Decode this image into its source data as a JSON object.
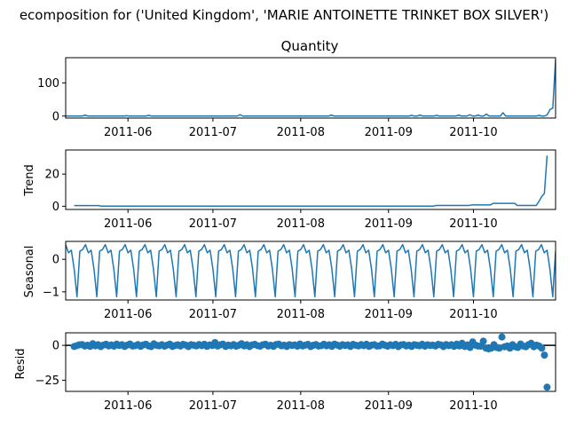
{
  "figure": {
    "suptitle": "ecomposition for ('United Kingdom', 'MARIE ANTOINETTE TRINKET BOX SILVER')"
  },
  "colors": {
    "series": "#1f77b4",
    "axis": "#000000",
    "zero_line": "#000000"
  },
  "chart_data": [
    {
      "type": "line",
      "panel": "observed",
      "title": "Quantity",
      "ylabel": "",
      "x_start": "2011-05-10",
      "x_end": "2011-10-30",
      "xlim": [
        "2011-05-10",
        "2011-10-30"
      ],
      "ylim": [
        -6,
        176
      ],
      "xticks": [
        "2011-06",
        "2011-07",
        "2011-08",
        "2011-09",
        "2011-10"
      ],
      "yticks": [
        0,
        100
      ],
      "series": [
        {
          "values": [
            0,
            0,
            0,
            0,
            0,
            0,
            0,
            3,
            0,
            0,
            0,
            0,
            0,
            0,
            0,
            0,
            0,
            0,
            0,
            0,
            0,
            0,
            1,
            0,
            0,
            0,
            0,
            0,
            0,
            0,
            2,
            0,
            0,
            0,
            0,
            0,
            0,
            0,
            0,
            0,
            0,
            0,
            0,
            0,
            0,
            0,
            0,
            0,
            0,
            0,
            0,
            0,
            0,
            0,
            0,
            0,
            0,
            0,
            0,
            0,
            0,
            0,
            0,
            4,
            0,
            0,
            0,
            0,
            0,
            0,
            0,
            0,
            0,
            0,
            0,
            0,
            0,
            0,
            0,
            0,
            0,
            0,
            0,
            0,
            0,
            0,
            0,
            0,
            0,
            0,
            0,
            0,
            0,
            0,
            0,
            0,
            3,
            0,
            0,
            0,
            0,
            0,
            0,
            0,
            0,
            0,
            0,
            0,
            0,
            0,
            0,
            0,
            0,
            0,
            0,
            0,
            0,
            0,
            0,
            0,
            0,
            0,
            0,
            0,
            0,
            2,
            0,
            0,
            3,
            0,
            0,
            0,
            0,
            0,
            2,
            0,
            0,
            0,
            0,
            0,
            0,
            0,
            3,
            0,
            0,
            0,
            4,
            0,
            0,
            3,
            0,
            0,
            6,
            0,
            0,
            0,
            0,
            0,
            10,
            0,
            0,
            0,
            0,
            0,
            0,
            0,
            0,
            0,
            0,
            0,
            0,
            2,
            0,
            0,
            4,
            20,
            24,
            170
          ]
        }
      ]
    },
    {
      "type": "line",
      "panel": "trend",
      "title": "",
      "ylabel": "Trend",
      "x_start": "2011-05-13",
      "x_end": "2011-10-27",
      "xlim": [
        "2011-05-10",
        "2011-10-30"
      ],
      "ylim": [
        -2,
        35
      ],
      "xticks": [
        "2011-06",
        "2011-07",
        "2011-08",
        "2011-09",
        "2011-10"
      ],
      "yticks": [
        0,
        20
      ],
      "series": [
        {
          "values": [
            0.4,
            0.4,
            0.4,
            0.4,
            0.4,
            0.4,
            0.4,
            0.4,
            0.4,
            0.4,
            0.1,
            0.1,
            0.1,
            0.1,
            0.1,
            0.1,
            0.1,
            0.1,
            0.1,
            0.1,
            0.1,
            0.1,
            0.1,
            0.1,
            0.1,
            0.1,
            0.1,
            0.1,
            0.1,
            0.1,
            0.1,
            0.1,
            0.1,
            0.1,
            0.1,
            0.1,
            0.1,
            0.1,
            0.1,
            0.1,
            0.1,
            0.1,
            0.1,
            0.1,
            0.1,
            0.1,
            0.1,
            0.1,
            0.1,
            0.1,
            0.1,
            0.1,
            0.1,
            0.1,
            0.1,
            0.1,
            0.1,
            0.1,
            0.1,
            0.1,
            0.1,
            0.1,
            0.1,
            0.1,
            0.1,
            0.1,
            0.1,
            0.1,
            0.1,
            0.1,
            0.1,
            0.1,
            0.1,
            0.1,
            0.1,
            0.1,
            0.1,
            0.1,
            0.1,
            0.1,
            0.1,
            0.1,
            0.1,
            0.1,
            0.1,
            0.1,
            0.1,
            0.1,
            0.1,
            0.1,
            0.1,
            0.1,
            0.1,
            0.1,
            0.1,
            0.1,
            0.1,
            0.1,
            0.1,
            0.1,
            0.1,
            0.1,
            0.1,
            0.1,
            0.1,
            0.1,
            0.1,
            0.1,
            0.1,
            0.1,
            0.1,
            0.1,
            0.1,
            0.1,
            0.1,
            0.1,
            0.1,
            0.1,
            0.1,
            0.1,
            0.1,
            0.1,
            0.1,
            0.1,
            0.1,
            0.1,
            0.1,
            0.1,
            0.1,
            0.1,
            0.1,
            0.1,
            0.1,
            0.1,
            0.5,
            0.5,
            0.5,
            0.5,
            0.5,
            0.5,
            0.5,
            0.5,
            0.5,
            0.5,
            0.5,
            0.5,
            0.5,
            0.8,
            0.8,
            0.8,
            0.8,
            0.8,
            0.8,
            0.8,
            0.8,
            1.8,
            1.8,
            1.8,
            1.8,
            1.8,
            1.8,
            1.8,
            1.8,
            1.8,
            0.5,
            0.5,
            0.5,
            0.5,
            0.5,
            0.5,
            0.5,
            0.5,
            3.0,
            6.0,
            8.0,
            31.5
          ]
        }
      ]
    },
    {
      "type": "line",
      "panel": "seasonal",
      "title": "",
      "ylabel": "Seasonal",
      "x_start": "2011-05-10",
      "x_end": "2011-10-30",
      "xlim": [
        "2011-05-10",
        "2011-10-30"
      ],
      "ylim": [
        -1.25,
        0.55
      ],
      "xticks": [
        "2011-06",
        "2011-07",
        "2011-08",
        "2011-09",
        "2011-10"
      ],
      "yticks": [
        -1,
        0
      ],
      "period": 7,
      "pattern": [
        0.45,
        0.2,
        0.28,
        -0.3,
        -1.15,
        0.25,
        0.3
      ]
    },
    {
      "type": "scatter",
      "panel": "resid",
      "title": "",
      "ylabel": "Resid",
      "x_start": "2011-05-13",
      "x_end": "2011-10-27",
      "xlim": [
        "2011-05-10",
        "2011-10-30"
      ],
      "ylim": [
        -33,
        9
      ],
      "xticks": [
        "2011-06",
        "2011-07",
        "2011-08",
        "2011-09",
        "2011-10"
      ],
      "yticks": [
        -25,
        0
      ],
      "zero_line": true,
      "series": [
        {
          "values": [
            -0.8,
            -0.2,
            0.4,
            0.6,
            -0.5,
            0.1,
            -0.7,
            1.2,
            -0.3,
            0.5,
            -0.9,
            0.2,
            0.8,
            -0.4,
            0.3,
            -0.6,
            0.9,
            -0.1,
            0.5,
            -0.8,
            0.2,
            1.0,
            -0.5,
            -0.2,
            0.6,
            -0.7,
            0.3,
            0.8,
            -0.4,
            -0.9,
            1.1,
            0.1,
            -0.3,
            0.5,
            -0.6,
            0.2,
            0.9,
            -0.8,
            -0.1,
            0.4,
            -0.5,
            0.7,
            0.2,
            -0.9,
            0.5,
            0.1,
            -0.4,
            0.6,
            -0.2,
            0.8,
            -0.7,
            0.3,
            -0.1,
            2.0,
            -0.5,
            0.4,
            0.9,
            -0.8,
            0.2,
            -0.3,
            0.6,
            -0.6,
            0.1,
            1.2,
            -0.4,
            0.5,
            -0.9,
            0.3,
            0.7,
            -0.2,
            -0.6,
            0.4,
            0.8,
            -0.5,
            0.1,
            -0.7,
            0.6,
            0.9,
            -0.3,
            0.2,
            -0.8,
            0.5,
            -0.1,
            0.3,
            -0.6,
            1.0,
            -0.4,
            0.2,
            0.7,
            -0.9,
            0.1,
            0.6,
            -0.5,
            -0.2,
            0.8,
            -0.3,
            0.4,
            -0.7,
            0.9,
            0.2,
            -0.6,
            0.5,
            -0.1,
            0.3,
            -0.8,
            0.7,
            0.1,
            -0.4,
            0.6,
            -0.2,
            0.8,
            -0.7,
            0.2,
            0.5,
            -0.5,
            -0.3,
            0.9,
            0.1,
            -0.6,
            0.4,
            -0.2,
            0.7,
            -0.9,
            0.3,
            0.6,
            -0.4,
            0.2,
            -0.8,
            0.5,
            0.1,
            -0.3,
            0.8,
            -0.6,
            0.4,
            -0.1,
            0.2,
            -0.5,
            0.7,
            0.3,
            -0.9,
            0.6,
            -0.2,
            0.5,
            -0.7,
            0.9,
            -0.4,
            1.5,
            -0.8,
            0.3,
            -1.5,
            2.5,
            0.2,
            -0.5,
            -0.6,
            3.0,
            -2.0,
            -2.5,
            -2.0,
            0.5,
            -1.5,
            -2.0,
            6.0,
            -1.0,
            -0.5,
            -2.0,
            0.5,
            -1.0,
            -1.5,
            1.0,
            -0.5,
            -1.0,
            0.5,
            1.5,
            -1.0,
            0.2,
            -0.5,
            -2.0,
            -7.0,
            -30.0
          ]
        }
      ]
    }
  ]
}
